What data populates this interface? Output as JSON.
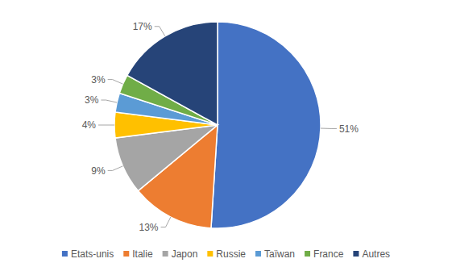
{
  "chart_data": {
    "type": "pie",
    "categories": [
      "Etats-unis",
      "Italie",
      "Japon",
      "Russie",
      "Taïwan",
      "France",
      "Autres"
    ],
    "values": [
      51,
      13,
      9,
      4,
      3,
      3,
      17
    ],
    "value_labels": [
      "51%",
      "13%",
      "9%",
      "4%",
      "3%",
      "3%",
      "17%"
    ],
    "colors": [
      "#4472c4",
      "#ed7d31",
      "#a5a5a5",
      "#ffc000",
      "#5b9bd5",
      "#70ad47",
      "#264478"
    ],
    "data_labels": true,
    "legend": "bottom"
  }
}
